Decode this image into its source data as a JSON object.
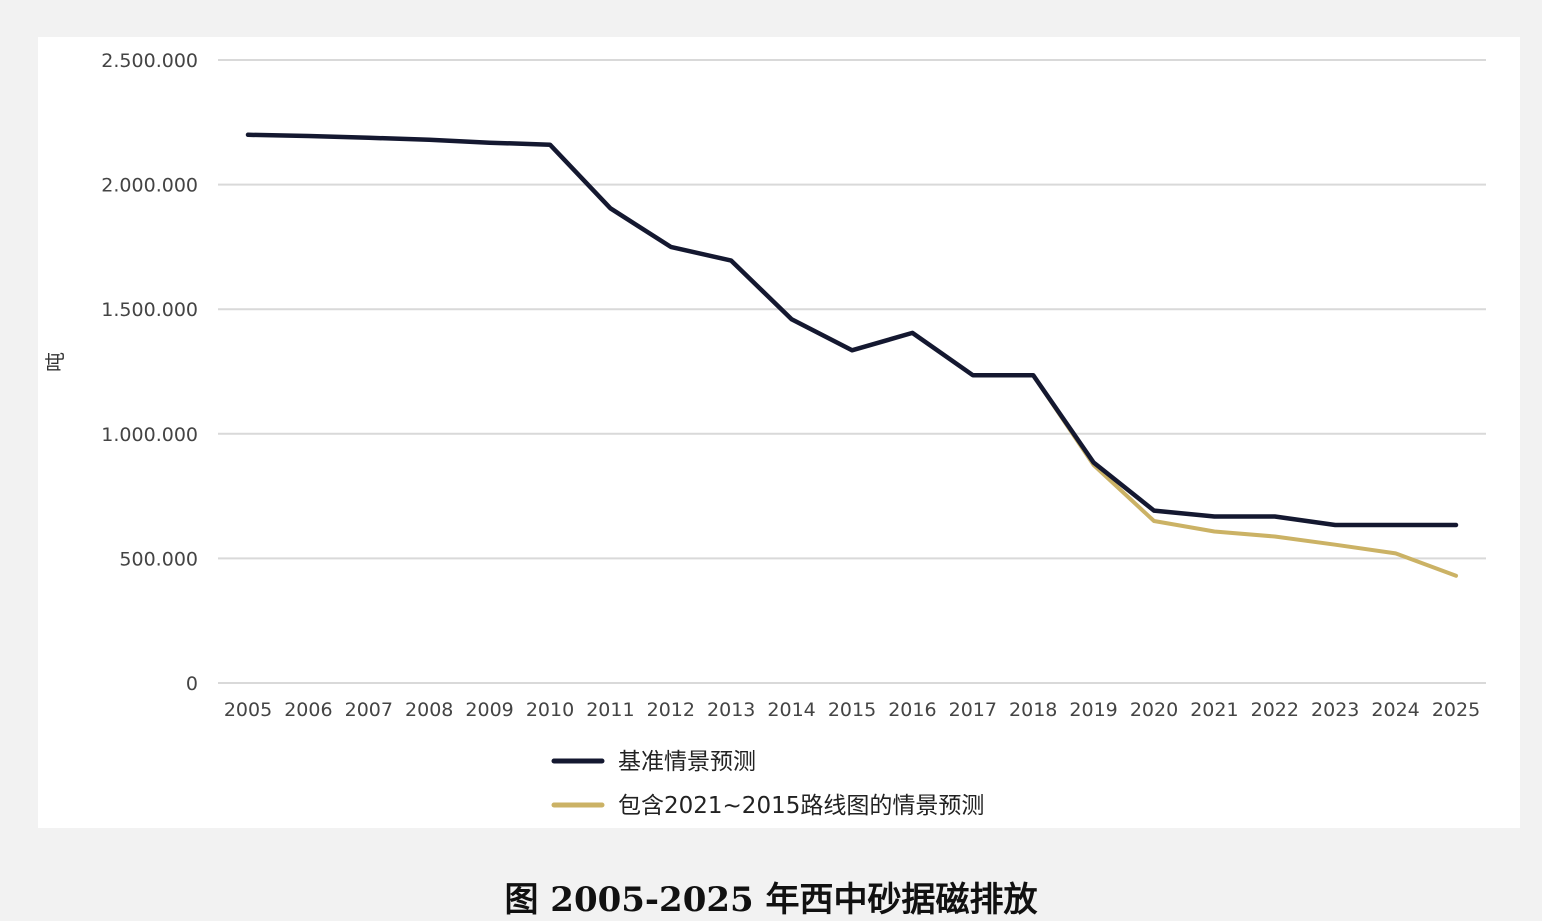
{
  "chart_data": {
    "type": "line",
    "title": "",
    "xlabel": "",
    "ylabel": "吨",
    "ylim": [
      0,
      2500000
    ],
    "yticks": [
      {
        "value": 0,
        "label": "0"
      },
      {
        "value": 500000,
        "label": "500.000"
      },
      {
        "value": 1000000,
        "label": "1.000.000"
      },
      {
        "value": 1500000,
        "label": "1.500.000"
      },
      {
        "value": 2000000,
        "label": "2.000.000"
      },
      {
        "value": 2500000,
        "label": "2.500.000"
      }
    ],
    "categories": [
      "2005",
      "2006",
      "2007",
      "2008",
      "2009",
      "2010",
      "2011",
      "2012",
      "2013",
      "2014",
      "2015",
      "2016",
      "2017",
      "2018",
      "2019",
      "2020",
      "2021",
      "2022",
      "2023",
      "2024",
      "2025"
    ],
    "grid": true,
    "legend_position": "bottom",
    "series": [
      {
        "name": "基准情景预测",
        "color": "#141830",
        "values": [
          2200000,
          2195000,
          2188000,
          2180000,
          2168000,
          2160000,
          1905000,
          1750000,
          1695000,
          1460000,
          1335000,
          1405000,
          1235000,
          1235000,
          885000,
          692000,
          668000,
          668000,
          634000,
          634000,
          634000
        ]
      },
      {
        "name": "包含2021~2015路线图的情景预测",
        "color": "#cbb265",
        "values": [
          null,
          null,
          null,
          null,
          null,
          null,
          null,
          null,
          null,
          null,
          null,
          null,
          null,
          1235000,
          875000,
          650000,
          608000,
          588000,
          555000,
          520000,
          430000
        ]
      }
    ]
  },
  "caption": "图 2005-2025 年西中砂据磁排放"
}
